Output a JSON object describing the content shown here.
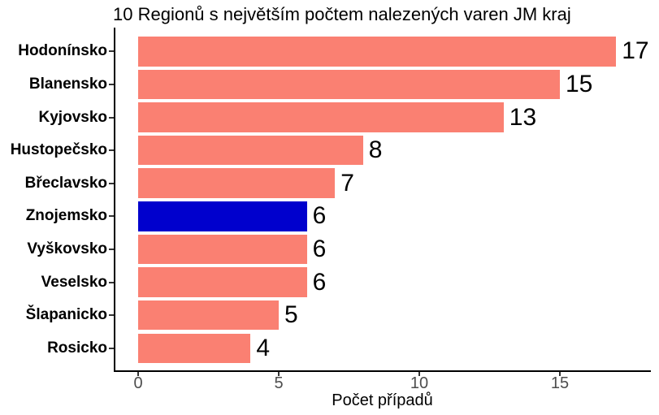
{
  "chart_data": {
    "type": "bar",
    "orientation": "horizontal",
    "title": "10 Regionů s největším počtem nalezených varen JM kraj",
    "xlabel": "Počet případů",
    "ylabel": "",
    "categories": [
      "Hodonínsko",
      "Blanensko",
      "Kyjovsko",
      "Hustopečsko",
      "Břeclavsko",
      "Znojemsko",
      "Vyškovsko",
      "Veselsko",
      "Šlapanicko",
      "Rosicko"
    ],
    "values": [
      17,
      15,
      13,
      8,
      7,
      6,
      6,
      6,
      5,
      4
    ],
    "bar_colors": [
      "#FA8072",
      "#FA8072",
      "#FA8072",
      "#FA8072",
      "#FA8072",
      "#0000CD",
      "#FA8072",
      "#FA8072",
      "#FA8072",
      "#FA8072"
    ],
    "value_labels": [
      "17",
      "15",
      "13",
      "8",
      "7",
      "6",
      "6",
      "6",
      "5",
      "4"
    ],
    "x_ticks": [
      0,
      5,
      10,
      15
    ],
    "x_tick_labels": [
      "0",
      "5",
      "10",
      "15"
    ],
    "xlim": [
      0,
      18.2
    ],
    "grid": false,
    "legend": "none"
  },
  "colors": {
    "default_bar": "#FA8072",
    "highlight_bar": "#0000CD",
    "axis_tick_text": "#4D4D4D",
    "text": "#000000",
    "axis_line": "#000000",
    "background": "#FFFFFF"
  }
}
